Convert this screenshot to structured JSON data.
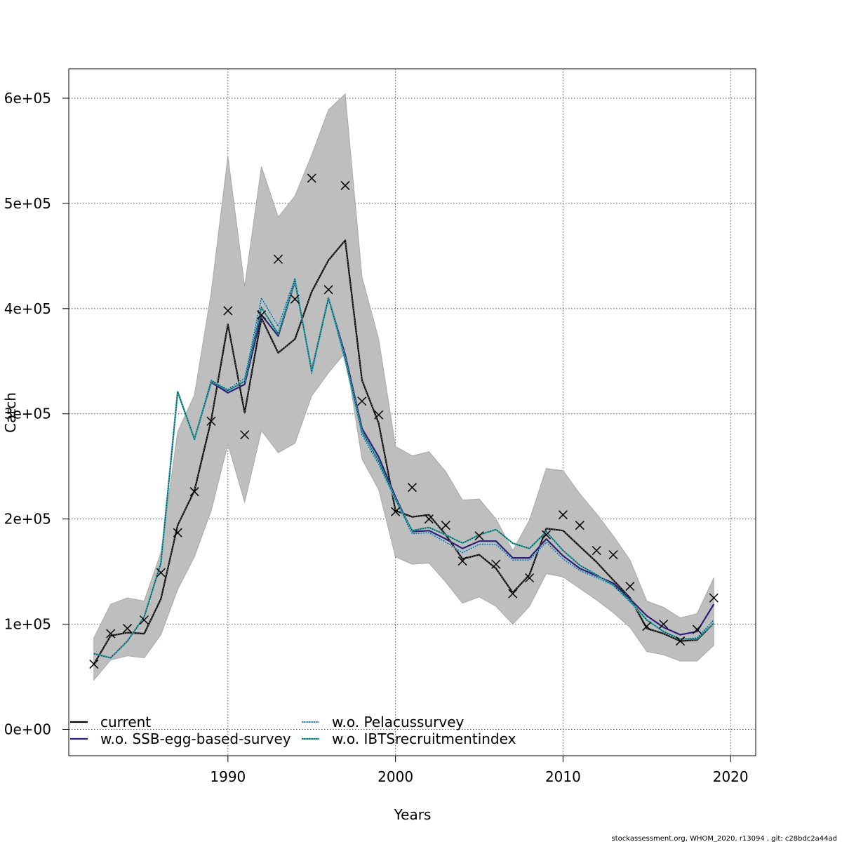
{
  "chart_data": {
    "type": "line",
    "title": "",
    "xlabel": "Years",
    "ylabel": "Catch",
    "xlim": [
      1980.5,
      2021.5
    ],
    "ylim": [
      -25000,
      628000
    ],
    "x_ticks": [
      1990,
      2000,
      2010,
      2020
    ],
    "x_tick_labels": [
      "1990",
      "2000",
      "2010",
      "2020"
    ],
    "y_ticks": [
      0,
      100000,
      200000,
      300000,
      400000,
      500000,
      600000
    ],
    "y_tick_labels": [
      "0e+00",
      "1e+05",
      "2e+05",
      "3e+05",
      "4e+05",
      "5e+05",
      "6e+05"
    ],
    "grid": true,
    "years": [
      1982,
      1983,
      1984,
      1985,
      1986,
      1987,
      1988,
      1989,
      1990,
      1991,
      1992,
      1993,
      1994,
      1995,
      1996,
      1997,
      1998,
      1999,
      2000,
      2001,
      2002,
      2003,
      2004,
      2005,
      2006,
      2007,
      2008,
      2009,
      2010,
      2011,
      2012,
      2013,
      2014,
      2015,
      2016,
      2017,
      2018,
      2019
    ],
    "confidence_band": {
      "color": "#bebebe",
      "lower": [
        47000,
        66000,
        70000,
        68000,
        90000,
        133000,
        164000,
        208000,
        271000,
        216000,
        284000,
        263000,
        272000,
        317000,
        339000,
        358000,
        257000,
        228000,
        164000,
        157000,
        158000,
        140000,
        120000,
        126000,
        117000,
        100000,
        117000,
        148000,
        145000,
        134000,
        123000,
        111000,
        97000,
        74000,
        71000,
        65000,
        65000,
        80000
      ],
      "upper": [
        87000,
        119000,
        125000,
        122000,
        168000,
        283000,
        318000,
        415000,
        545000,
        421000,
        535000,
        487000,
        507000,
        546000,
        589000,
        604000,
        430000,
        371000,
        269000,
        260000,
        264000,
        245000,
        218000,
        219000,
        200000,
        170000,
        199000,
        248000,
        246000,
        224000,
        205000,
        184000,
        161000,
        122000,
        116000,
        106000,
        110000,
        144000
      ]
    },
    "observed": {
      "marker": "x",
      "color": "#000000",
      "values": [
        62000,
        91000,
        96000,
        104000,
        149000,
        187000,
        226000,
        293000,
        398000,
        280000,
        394000,
        447000,
        409000,
        524000,
        418000,
        517000,
        312000,
        299000,
        207000,
        230000,
        200000,
        194000,
        160000,
        184000,
        157000,
        129000,
        144000,
        185000,
        204000,
        194000,
        170000,
        166000,
        136000,
        98000,
        100000,
        84000,
        95000,
        125000
      ]
    },
    "series": [
      {
        "name": "current",
        "color": "#000000",
        "style": "solid",
        "values": [
          62000,
          89000,
          92000,
          91000,
          124000,
          194000,
          227000,
          294000,
          385000,
          301000,
          391000,
          358000,
          371000,
          416000,
          446000,
          465000,
          332000,
          291000,
          208000,
          202000,
          204000,
          185000,
          162000,
          166000,
          153000,
          130000,
          147000,
          191000,
          189000,
          174000,
          159000,
          142000,
          125000,
          96000,
          91000,
          84000,
          85000,
          101000
        ]
      },
      {
        "name": "w.o. SSB-egg-based-survey",
        "color": "#2c1f7a",
        "style": "solid",
        "values": [
          72000,
          68000,
          84000,
          107000,
          158000,
          321000,
          276000,
          330000,
          320000,
          328000,
          394000,
          374000,
          426000,
          341000,
          410000,
          356000,
          286000,
          259000,
          221000,
          188000,
          189000,
          181000,
          172000,
          179000,
          179000,
          163000,
          163000,
          181000,
          165000,
          153000,
          146000,
          139000,
          124000,
          108000,
          97000,
          90000,
          93000,
          119000
        ]
      },
      {
        "name": "w.o. Pelacussurvey",
        "color": "#86c8ec",
        "style": "dotted",
        "values": [
          72000,
          68000,
          84000,
          107000,
          158000,
          321000,
          276000,
          332000,
          323000,
          334000,
          410000,
          383000,
          429000,
          338000,
          410000,
          350000,
          280000,
          252000,
          218000,
          186000,
          187000,
          178000,
          168000,
          176000,
          176000,
          161000,
          161000,
          178000,
          162000,
          151000,
          144000,
          137000,
          121000,
          104000,
          93000,
          86000,
          87000,
          104000
        ]
      },
      {
        "name": "w.o. IBTSrecruitmentindex",
        "color": "#2ca9a9",
        "style": "dotted",
        "values": [
          72000,
          68000,
          84000,
          107000,
          158000,
          321000,
          276000,
          331000,
          322000,
          331000,
          401000,
          376000,
          427000,
          340000,
          410000,
          353000,
          283000,
          255000,
          219000,
          189000,
          192000,
          185000,
          177000,
          185000,
          190000,
          177000,
          172000,
          188000,
          170000,
          156000,
          147000,
          137000,
          122000,
          104000,
          93000,
          86000,
          86000,
          101000
        ]
      }
    ],
    "legend": {
      "placement": "bottom-left",
      "entries": [
        "current",
        "w.o. SSB-egg-based-survey",
        "w.o. Pelacussurvey",
        "w.o. IBTSrecruitmentindex"
      ]
    },
    "footer": "stockassessment.org, WHOM_2020, r13094 , git: c28bdc2a44ad"
  }
}
